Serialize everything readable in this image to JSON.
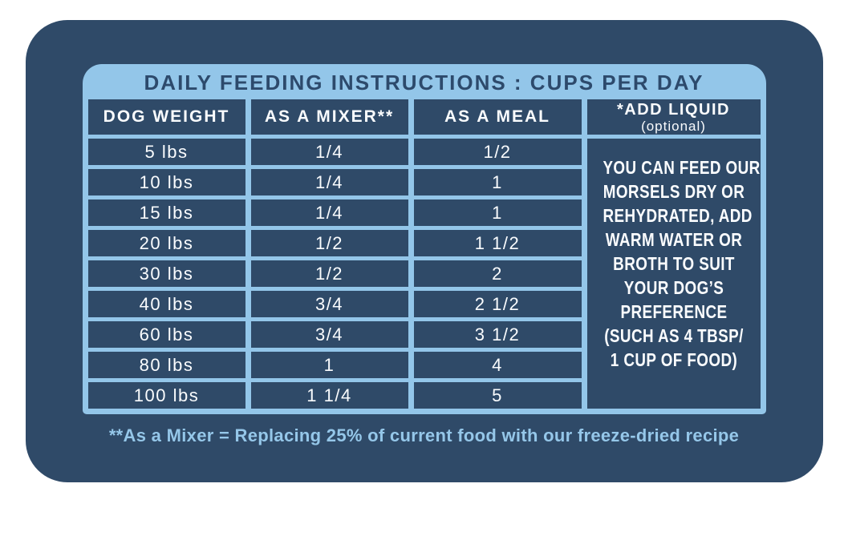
{
  "title": "DAILY FEEDING INSTRUCTIONS : CUPS PER DAY",
  "table": {
    "headers": [
      "DOG WEIGHT",
      "AS A MIXER**",
      "AS A MEAL"
    ],
    "add_liquid_header": {
      "line1": "*ADD LIQUID",
      "line2": "(optional)"
    },
    "rows": [
      {
        "weight": "5 lbs",
        "mixer": "1/4",
        "meal": "1/2"
      },
      {
        "weight": "10 lbs",
        "mixer": "1/4",
        "meal": "1"
      },
      {
        "weight": "15 lbs",
        "mixer": "1/4",
        "meal": "1"
      },
      {
        "weight": "20 lbs",
        "mixer": "1/2",
        "meal": "1 1/2"
      },
      {
        "weight": "30 lbs",
        "mixer": "1/2",
        "meal": "2"
      },
      {
        "weight": "40 lbs",
        "mixer": "3/4",
        "meal": "2 1/2"
      },
      {
        "weight": "60 lbs",
        "mixer": "3/4",
        "meal": "3 1/2"
      },
      {
        "weight": "80 lbs",
        "mixer": "1",
        "meal": "4"
      },
      {
        "weight": "100 lbs",
        "mixer": "1 1/4",
        "meal": "5"
      }
    ],
    "add_liquid_note_lines": [
      "YOU CAN FEED OUR",
      "MORSELS DRY OR",
      "REHYDRATED, ADD",
      "WARM WATER OR",
      "BROTH TO SUIT",
      "YOUR DOG’S",
      "PREFERENCE",
      "(SUCH AS 4 TBSP/",
      "1 CUP OF FOOD)"
    ]
  },
  "footnote": "**As a Mixer = Replacing 25% of current food with our freeze-dried recipe",
  "colors": {
    "page_background": "#FFFFFF",
    "card_navy": "#2F4A68",
    "panel_light_blue": "#93C6E9",
    "title_text_navy": "#2D4A6C",
    "cell_text_white": "#FAFCFE",
    "footnote_light_blue": "#95C7E9"
  },
  "chart_data": {
    "type": "table",
    "title": "DAILY FEEDING INSTRUCTIONS : CUPS PER DAY",
    "columns": [
      "DOG WEIGHT",
      "AS A MIXER**",
      "AS A MEAL",
      "*ADD LIQUID (optional)"
    ],
    "rows": [
      [
        "5 lbs",
        "1/4",
        "1/2"
      ],
      [
        "10 lbs",
        "1/4",
        "1"
      ],
      [
        "15 lbs",
        "1/4",
        "1"
      ],
      [
        "20 lbs",
        "1/2",
        "1 1/2"
      ],
      [
        "30 lbs",
        "1/2",
        "2"
      ],
      [
        "40 lbs",
        "3/4",
        "2 1/2"
      ],
      [
        "60 lbs",
        "3/4",
        "3 1/2"
      ],
      [
        "80 lbs",
        "1",
        "4"
      ],
      [
        "100 lbs",
        "1 1/4",
        "5"
      ]
    ],
    "add_liquid_note": "YOU CAN FEED OUR MORSELS DRY OR REHYDRATED, ADD WARM WATER OR BROTH TO SUIT YOUR DOG’S PREFERENCE (SUCH AS 4 TBSP/ 1 CUP OF FOOD)",
    "footnote": "**As a Mixer = Replacing 25% of current food with our freeze-dried recipe",
    "layout_hints": {
      "merged_last_column": true,
      "units": "cups per day"
    }
  }
}
